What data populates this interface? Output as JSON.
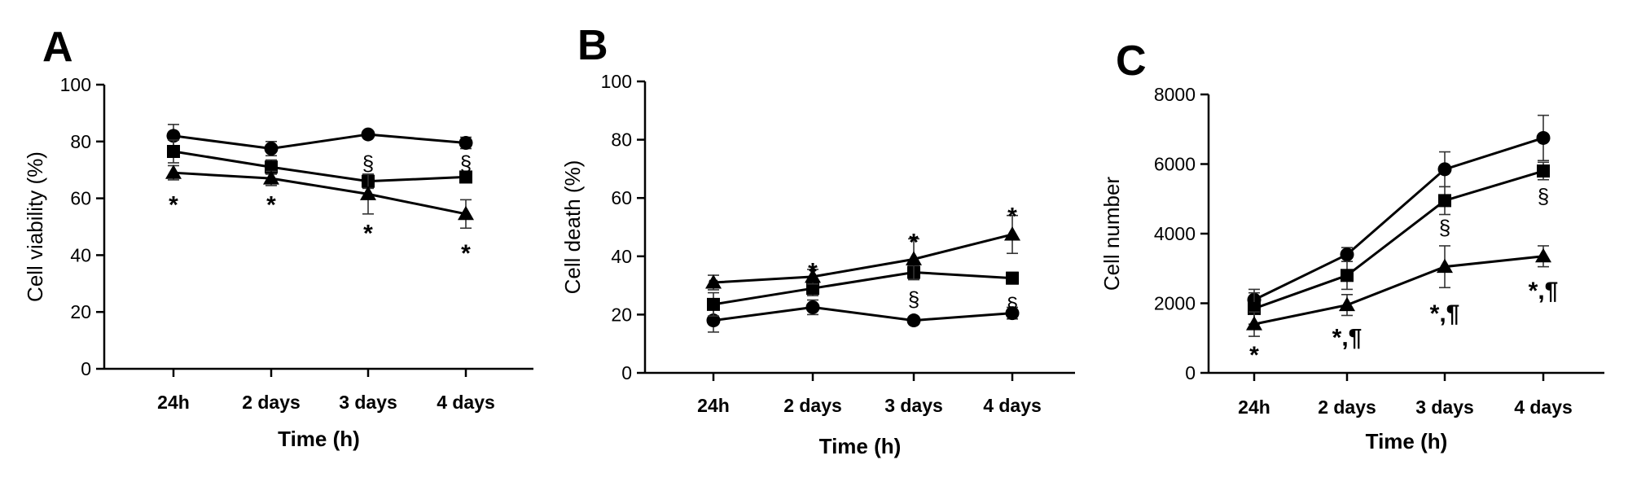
{
  "chart_data": [
    {
      "panel": "A",
      "type": "line",
      "categories": [
        "24h",
        "2 days",
        "3 days",
        "4 days"
      ],
      "xlabel": "Time (h)",
      "ylabel": "Cell viability (%)",
      "ylim": [
        0,
        100
      ],
      "yticks": [
        0,
        20,
        40,
        60,
        80,
        100
      ],
      "grid": false,
      "series": [
        {
          "marker": "circle",
          "values": [
            82,
            77.5,
            82.5,
            79.5
          ],
          "errors": [
            4,
            2.5,
            0.8,
            2
          ]
        },
        {
          "marker": "square",
          "values": [
            76.5,
            71,
            66,
            67.5
          ],
          "errors": [
            4,
            2.5,
            2.5,
            2
          ]
        },
        {
          "marker": "triangle",
          "values": [
            69,
            67,
            61.5,
            54.5
          ],
          "errors": [
            2.5,
            2.5,
            7,
            5
          ]
        }
      ],
      "annotations": [
        {
          "text": "*",
          "index": 0,
          "y": 60
        },
        {
          "text": "*",
          "index": 1,
          "y": 60
        },
        {
          "text": "§",
          "index": 2,
          "y": 72
        },
        {
          "text": "*",
          "index": 2,
          "y": 50
        },
        {
          "text": "§",
          "index": 3,
          "y": 72
        },
        {
          "text": "*",
          "index": 3,
          "y": 43
        }
      ]
    },
    {
      "panel": "B",
      "type": "line",
      "categories": [
        "24h",
        "2 days",
        "3 days",
        "4 days"
      ],
      "xlabel": "Time (h)",
      "ylabel": "Cell death (%)",
      "ylim": [
        0,
        100
      ],
      "yticks": [
        0,
        20,
        40,
        60,
        80,
        100
      ],
      "grid": false,
      "series": [
        {
          "marker": "circle",
          "values": [
            18,
            22.5,
            18,
            20.5
          ],
          "errors": [
            4,
            2.5,
            0.8,
            2
          ]
        },
        {
          "marker": "square",
          "values": [
            23.5,
            29,
            34.5,
            32.5
          ],
          "errors": [
            4,
            2.5,
            2.5,
            2
          ]
        },
        {
          "marker": "triangle",
          "values": [
            31,
            33,
            39,
            47.5
          ],
          "errors": [
            2.5,
            2.5,
            7,
            6.5
          ]
        }
      ],
      "annotations": [
        {
          "text": "*",
          "index": 0,
          "y": 32
        },
        {
          "text": "*",
          "index": 1,
          "y": 37
        },
        {
          "text": "*",
          "index": 2,
          "y": 47
        },
        {
          "text": "§",
          "index": 2,
          "y": 25
        },
        {
          "text": "*",
          "index": 3,
          "y": 56
        },
        {
          "text": "§",
          "index": 3,
          "y": 23
        }
      ]
    },
    {
      "panel": "C",
      "type": "line",
      "categories": [
        "24h",
        "2 days",
        "3 days",
        "4 days"
      ],
      "xlabel": "Time (h)",
      "ylabel": "Cell number",
      "ylim": [
        0,
        8000
      ],
      "yticks": [
        0,
        2000,
        4000,
        6000,
        8000
      ],
      "grid": false,
      "series": [
        {
          "marker": "circle",
          "values": [
            2100,
            3400,
            5850,
            6750
          ],
          "errors": [
            300,
            200,
            500,
            650
          ]
        },
        {
          "marker": "square",
          "values": [
            1850,
            2800,
            4950,
            5800
          ],
          "errors": [
            450,
            400,
            400,
            250
          ]
        },
        {
          "marker": "triangle",
          "values": [
            1400,
            1950,
            3050,
            3350
          ],
          "errors": [
            350,
            300,
            600,
            300
          ]
        }
      ],
      "annotations": [
        {
          "text": "*",
          "index": 0,
          "y": 700
        },
        {
          "text": "*,¶",
          "index": 1,
          "y": 1200
        },
        {
          "text": "§",
          "index": 2,
          "y": 4150
        },
        {
          "text": "*,¶",
          "index": 2,
          "y": 1900
        },
        {
          "text": "§",
          "index": 3,
          "y": 5050
        },
        {
          "text": "*,¶",
          "index": 3,
          "y": 2550
        }
      ]
    }
  ]
}
